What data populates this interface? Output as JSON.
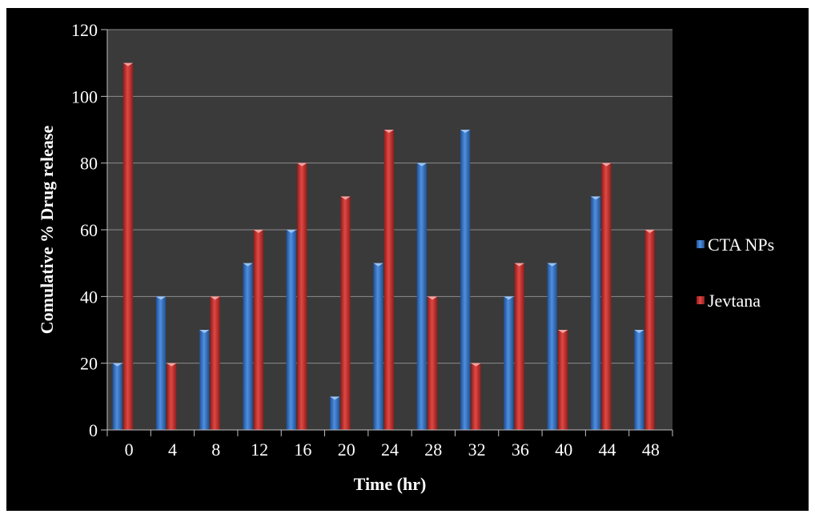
{
  "chart_data": {
    "type": "bar",
    "title": "",
    "xlabel": "Time (hr)",
    "ylabel": "Comulative % Drug release",
    "categories": [
      "0",
      "4",
      "8",
      "12",
      "16",
      "20",
      "24",
      "28",
      "32",
      "36",
      "40",
      "44",
      "48"
    ],
    "series": [
      {
        "name": "CTA NPs",
        "color": "#3a78c9",
        "values": [
          20,
          40,
          30,
          50,
          60,
          10,
          50,
          80,
          90,
          40,
          50,
          70,
          30
        ]
      },
      {
        "name": "Jevtana",
        "color": "#c8302c",
        "values": [
          110,
          20,
          40,
          60,
          80,
          70,
          90,
          40,
          20,
          50,
          30,
          80,
          60
        ]
      }
    ],
    "ylim": [
      0,
      120
    ],
    "yticks": [
      0,
      20,
      40,
      60,
      80,
      100,
      120
    ],
    "grid": true,
    "legend_position": "right",
    "plot_background": "#3a3a3a",
    "figure_background": "#000000"
  }
}
